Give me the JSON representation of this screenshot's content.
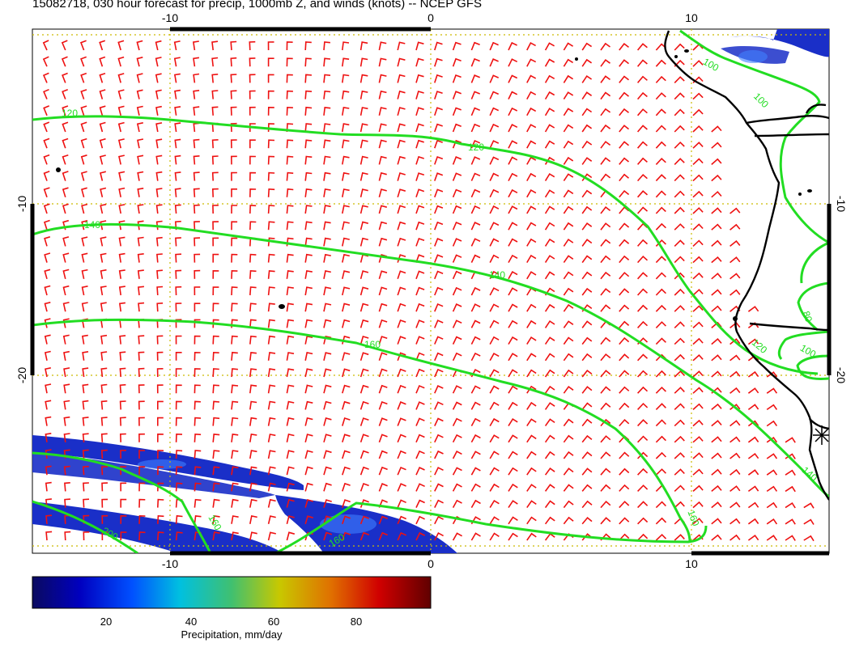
{
  "title": "15082718, 030 hour forecast for precip, 1000mb Z, and winds (knots) -- NCEP GFS",
  "axes": {
    "lon_ticks_top": [
      "-10",
      "0",
      "10"
    ],
    "lon_ticks_bottom": [
      "-10",
      "0",
      "10"
    ],
    "lat_ticks_left": [
      "-10",
      "-20"
    ],
    "lat_ticks_right": [
      "-10",
      "-20"
    ]
  },
  "contour_labels": [
    "120",
    "120",
    "140",
    "140",
    "160",
    "160",
    "160",
    "160",
    "200",
    "100",
    "80",
    "120",
    "100",
    "140",
    "100"
  ],
  "colorbar": {
    "ticks": [
      "20",
      "40",
      "60",
      "80"
    ],
    "label": "Precipitation, mm/day"
  },
  "colors": {
    "contour": "#22dd22",
    "wind_barb": "#ee1111",
    "grid": "#ccbb00",
    "coast": "#000000",
    "precip": "#1a2fc8"
  },
  "legend_icons": [
    "wind-barb-icon",
    "asterisk-marker-icon"
  ]
}
